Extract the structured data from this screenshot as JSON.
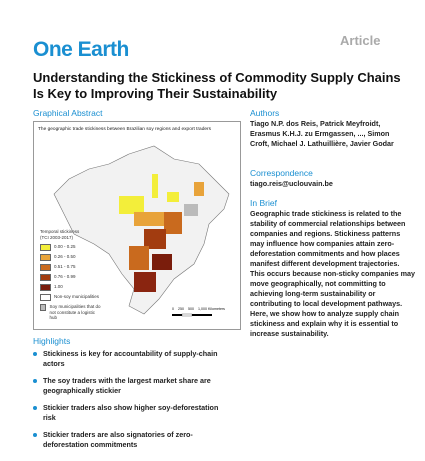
{
  "header": {
    "journal": "One Earth",
    "section": "Article"
  },
  "title": "Understanding the Stickiness of Commodity Supply Chains Is Key to Improving Their Sustainability",
  "graphical_abstract": {
    "heading": "Graphical Abstract",
    "caption": "The geographic trade stickiness between Brazilian soy regions and export traders",
    "legend_title": "Temporal stickiness (TCI 2003-2017)",
    "legend": [
      "0.00 - 0.25",
      "0.26 - 0.50",
      "0.51 - 0.75",
      "0.76 - 0.99",
      "1.00",
      "Non-soy municipalities",
      "Soy municipalities that do not constitute a logistic hub"
    ],
    "scale": [
      "0",
      "250",
      "500",
      "1,000 Kilometers"
    ]
  },
  "highlights": {
    "heading": "Highlights",
    "items": [
      "Stickiness is key for accountability of supply-chain actors",
      "The soy traders with the largest market share are geographically stickier",
      "Stickier traders also show higher soy-deforestation risk",
      "Stickier traders are also signatories of zero-deforestation commitments"
    ]
  },
  "authors": {
    "heading": "Authors",
    "text": "Tiago N.P. dos Reis, Patrick Meyfroidt, Erasmus K.H.J. zu Ermgassen, ..., Simon Croft, Michael J. Lathuillière, Javier Godar"
  },
  "correspondence": {
    "heading": "Correspondence",
    "email": "tiago.reis@uclouvain.be"
  },
  "in_brief": {
    "heading": "In Brief",
    "text": "Geographic trade stickiness is related to the stability of commercial relationships between companies and regions. Stickiness patterns may influence how companies attain zero-deforestation commitments and how places manifest different development trajectories. This occurs because non-sticky companies may move geographically, not committing to achieving long-term sustainability or contributing to local development pathways. Here, we show how to analyze supply chain stickiness and explain why it is essential to increase sustainability."
  }
}
